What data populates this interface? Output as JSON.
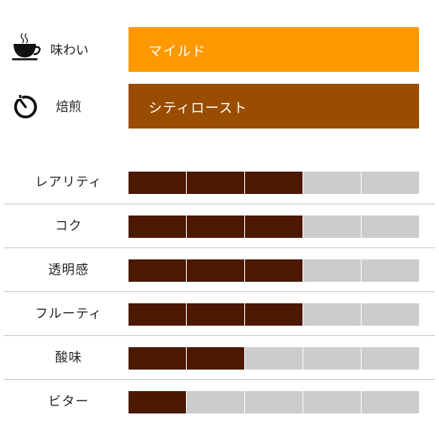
{
  "colors": {
    "taste_bg": "#ff9900",
    "roast_bg": "#994d00",
    "filled": "#4a1900",
    "empty": "#cccccc"
  },
  "attributes": {
    "taste": {
      "icon": "coffee-cup-icon",
      "label": "味わい",
      "value": "マイルド"
    },
    "roast": {
      "icon": "stopwatch-icon",
      "label": "焙煎",
      "value": "シティロースト"
    }
  },
  "ratings": {
    "max": 5,
    "items": [
      {
        "label": "レアリティ",
        "value": 3
      },
      {
        "label": "コク",
        "value": 3
      },
      {
        "label": "透明感",
        "value": 3
      },
      {
        "label": "フルーティ",
        "value": 3
      },
      {
        "label": "酸味",
        "value": 2
      },
      {
        "label": "ビター",
        "value": 1
      }
    ]
  }
}
